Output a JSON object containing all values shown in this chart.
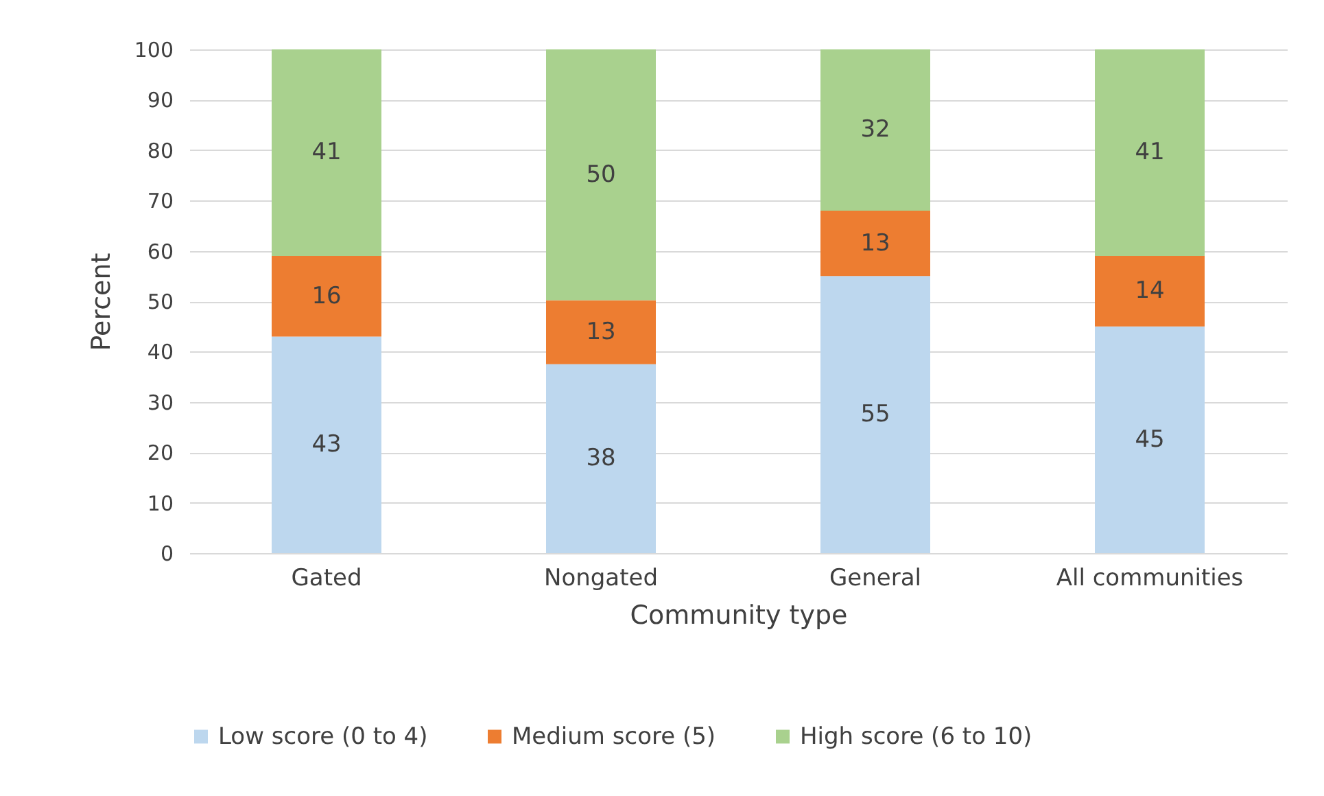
{
  "chart_data": {
    "type": "bar",
    "stacked": true,
    "xlabel": "Community type",
    "ylabel": "Percent",
    "categories": [
      "Gated",
      "Nongated",
      "General",
      "All communities"
    ],
    "series": [
      {
        "name": "Low score (0 to 4)",
        "color": "#bdd7ee",
        "values": [
          43,
          37.5,
          55,
          45
        ],
        "value_labels": [
          "43",
          "38",
          "55",
          "45"
        ]
      },
      {
        "name": "Medium score (5)",
        "color": "#ed7d31",
        "values": [
          16,
          12.7,
          13,
          14
        ],
        "value_labels": [
          "16",
          "13",
          "13",
          "14"
        ]
      },
      {
        "name": "High score (6 to 10)",
        "color": "#a9d18e",
        "values": [
          41,
          49.8,
          32,
          41
        ],
        "value_labels": [
          "41",
          "50",
          "32",
          "41"
        ]
      }
    ],
    "ylim": [
      0,
      100
    ],
    "yticks": [
      0,
      10,
      20,
      30,
      40,
      50,
      60,
      70,
      80,
      90,
      100
    ],
    "grid": "y",
    "legend": "bottom"
  }
}
